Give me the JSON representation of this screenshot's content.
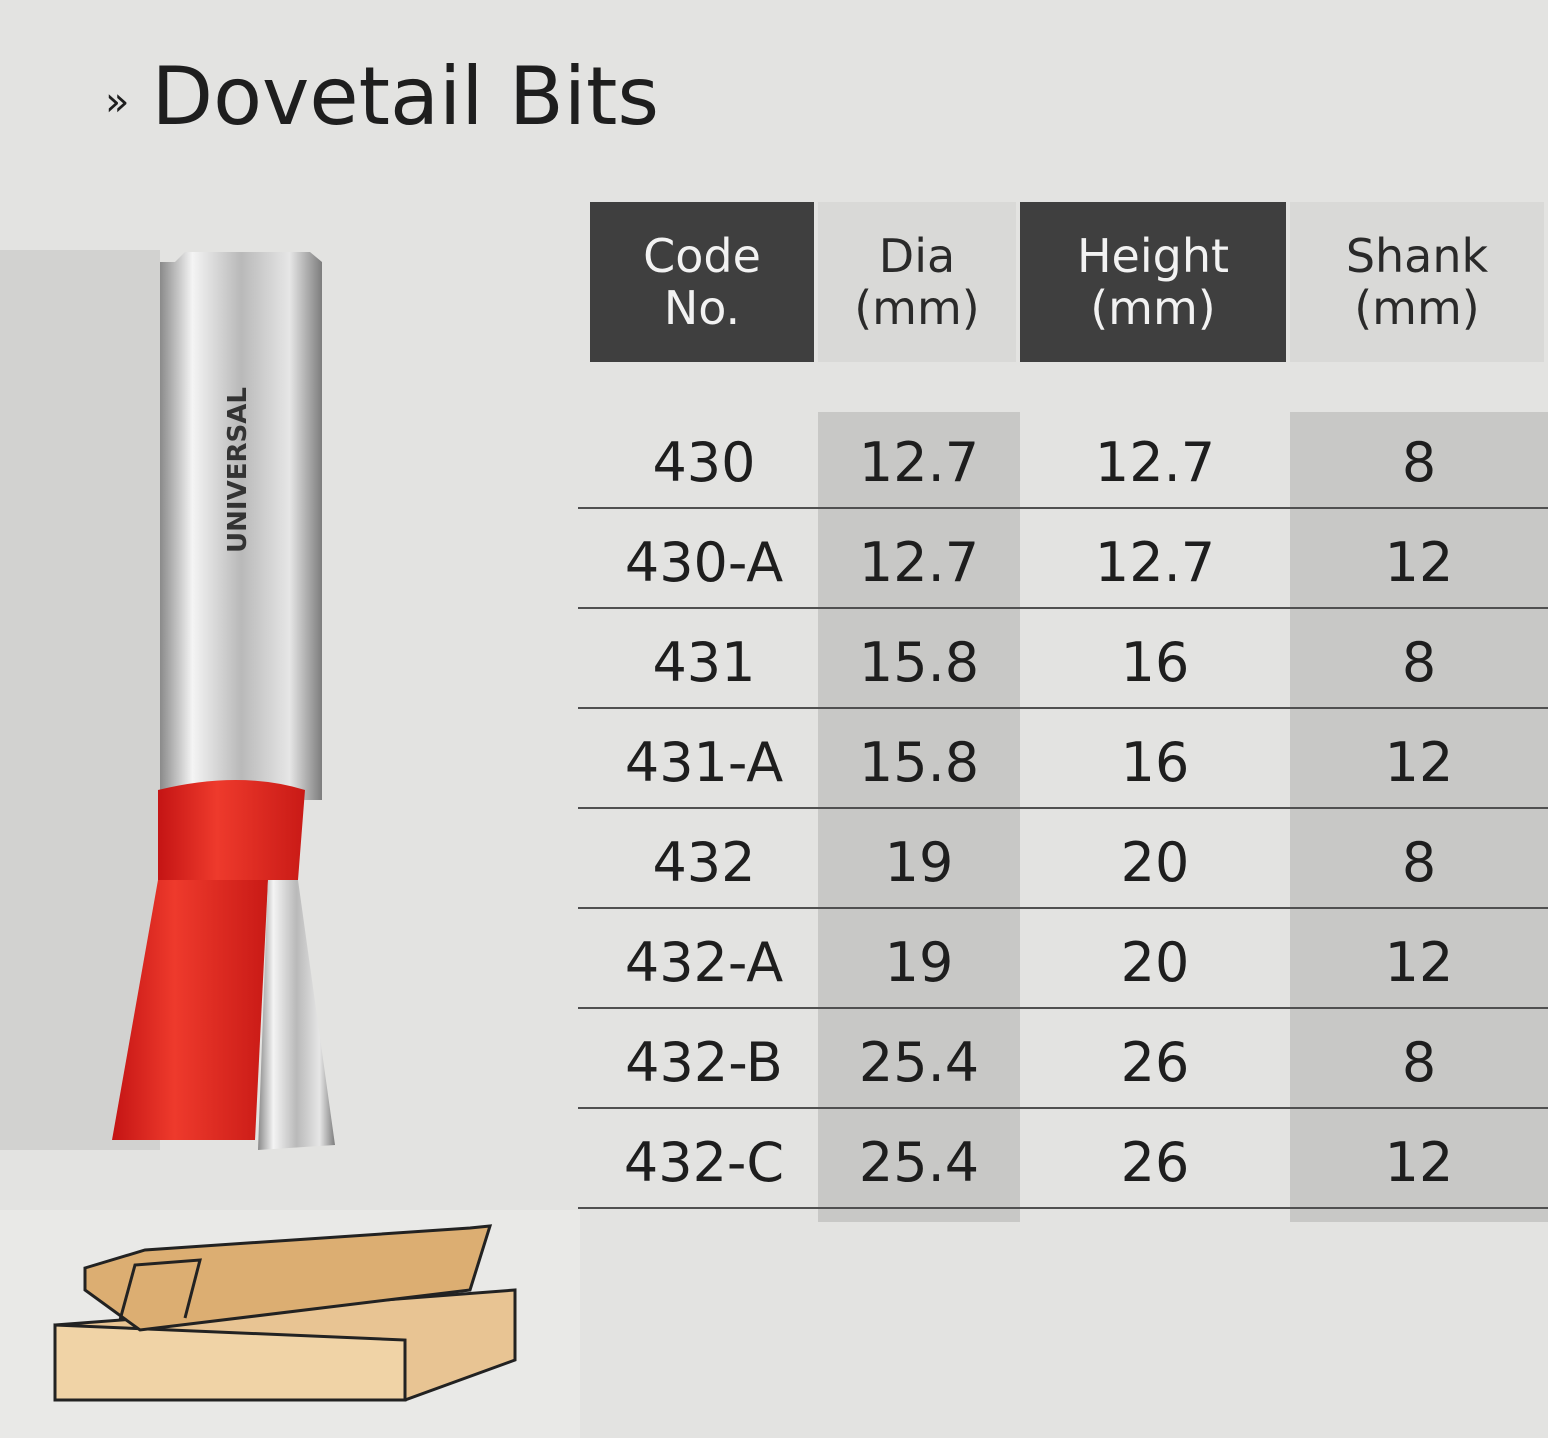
{
  "header": {
    "marker": "»",
    "title": "Dovetail Bits"
  },
  "image": {
    "logo": "UNIVERSAL"
  },
  "table": {
    "headers": [
      [
        "Code",
        "No."
      ],
      [
        "Dia",
        "(mm)"
      ],
      [
        "Height",
        "(mm)"
      ],
      [
        "Shank",
        "(mm)"
      ]
    ],
    "rows": [
      [
        "430",
        12.7,
        12.7,
        8
      ],
      [
        "430-A",
        12.7,
        12.7,
        12
      ],
      [
        "431",
        15.8,
        16,
        8
      ],
      [
        "431-A",
        15.8,
        16,
        12
      ],
      [
        "432",
        19,
        20,
        8
      ],
      [
        "432-A",
        19,
        20,
        12
      ],
      [
        "432-B",
        25.4,
        26,
        8
      ],
      [
        "432-C",
        25.4,
        26,
        12
      ]
    ]
  }
}
